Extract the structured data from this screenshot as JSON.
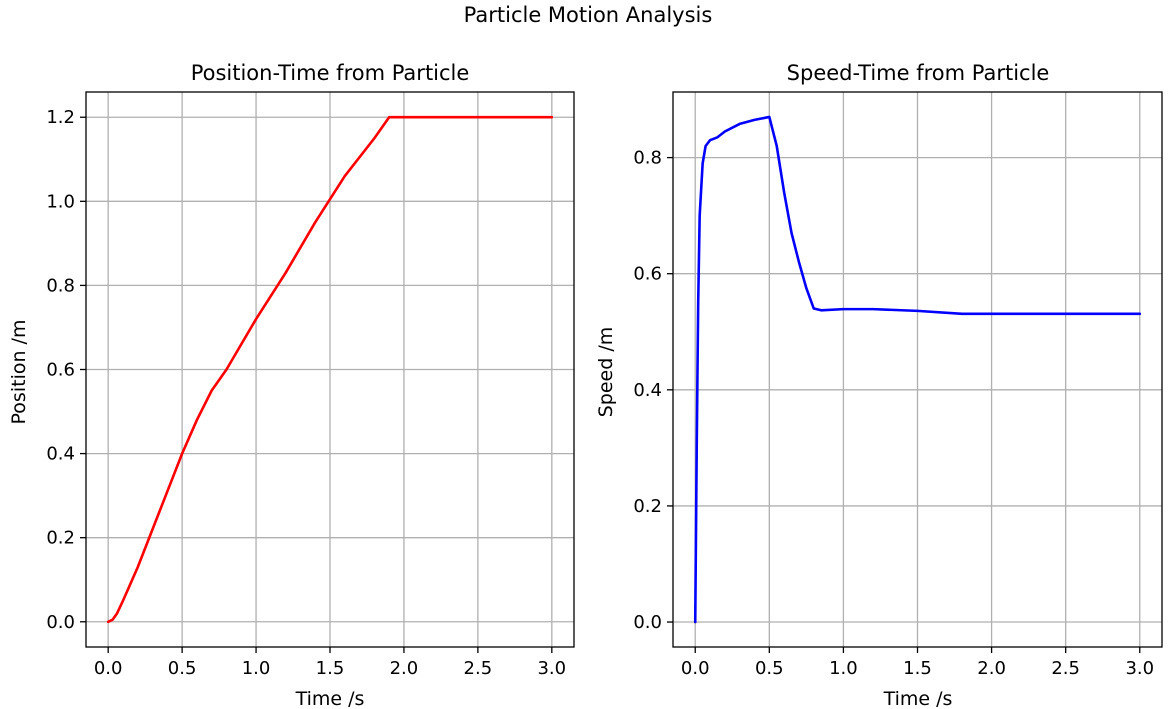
{
  "suptitle": "Particle Motion Analysis",
  "chart_data": [
    {
      "type": "line",
      "title": "Position-Time from Particle",
      "xlabel": "Time /s",
      "ylabel": "Position /m",
      "xlim": [
        -0.15,
        3.15
      ],
      "ylim": [
        -0.06,
        1.26
      ],
      "xticks": [
        0.0,
        0.5,
        1.0,
        1.5,
        2.0,
        2.5,
        3.0
      ],
      "xtick_labels": [
        "0.0",
        "0.5",
        "1.0",
        "1.5",
        "2.0",
        "2.5",
        "3.0"
      ],
      "yticks": [
        0.0,
        0.2,
        0.4,
        0.6,
        0.8,
        1.0,
        1.2
      ],
      "ytick_labels": [
        "0.0",
        "0.2",
        "0.4",
        "0.6",
        "0.8",
        "1.0",
        "1.2"
      ],
      "grid": true,
      "series": [
        {
          "color": "#ff0000",
          "x": [
            0.0,
            0.03,
            0.06,
            0.1,
            0.2,
            0.3,
            0.4,
            0.5,
            0.6,
            0.7,
            0.8,
            1.0,
            1.2,
            1.4,
            1.6,
            1.8,
            1.9,
            2.0,
            2.5,
            3.0
          ],
          "y": [
            0.0,
            0.005,
            0.02,
            0.05,
            0.13,
            0.22,
            0.31,
            0.4,
            0.48,
            0.55,
            0.6,
            0.72,
            0.83,
            0.95,
            1.06,
            1.15,
            1.2,
            1.2,
            1.2,
            1.2
          ]
        }
      ]
    },
    {
      "type": "line",
      "title": "Speed-Time from Particle",
      "xlabel": "Time /s",
      "ylabel": "Speed /m",
      "xlim": [
        -0.15,
        3.15
      ],
      "ylim": [
        -0.043,
        0.913
      ],
      "xticks": [
        0.0,
        0.5,
        1.0,
        1.5,
        2.0,
        2.5,
        3.0
      ],
      "xtick_labels": [
        "0.0",
        "0.5",
        "1.0",
        "1.5",
        "2.0",
        "2.5",
        "3.0"
      ],
      "yticks": [
        0.0,
        0.2,
        0.4,
        0.6,
        0.8
      ],
      "ytick_labels": [
        "0.0",
        "0.2",
        "0.4",
        "0.6",
        "0.8"
      ],
      "grid": true,
      "series": [
        {
          "color": "#0000ff",
          "x": [
            0.0,
            0.01,
            0.02,
            0.03,
            0.05,
            0.07,
            0.1,
            0.15,
            0.2,
            0.3,
            0.4,
            0.5,
            0.55,
            0.6,
            0.65,
            0.7,
            0.75,
            0.8,
            0.85,
            1.0,
            1.2,
            1.5,
            1.8,
            2.0,
            2.5,
            3.0
          ],
          "y": [
            0.0,
            0.3,
            0.55,
            0.7,
            0.79,
            0.82,
            0.83,
            0.835,
            0.845,
            0.858,
            0.865,
            0.87,
            0.82,
            0.74,
            0.67,
            0.62,
            0.575,
            0.54,
            0.537,
            0.539,
            0.539,
            0.536,
            0.531,
            0.531,
            0.531,
            0.531
          ]
        }
      ]
    }
  ]
}
